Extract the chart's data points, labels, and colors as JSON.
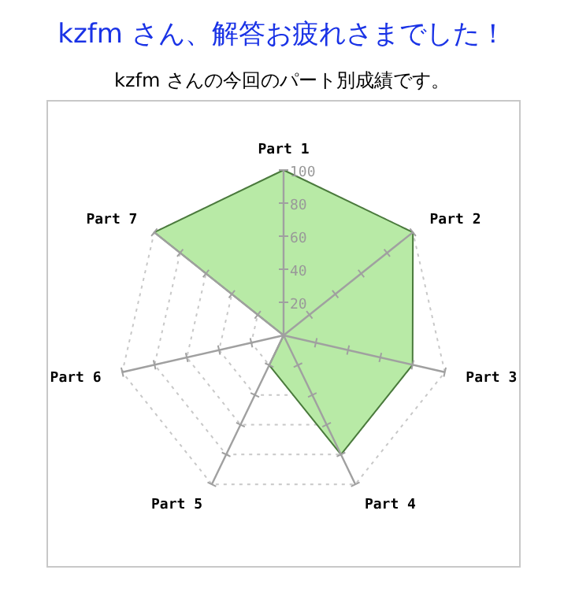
{
  "chart_data": {
    "type": "radar",
    "title": "kzfm さん、解答お疲れさまでした！",
    "subtitle": "kzfm さんの今回のパート別成績です。",
    "categories": [
      "Part 1",
      "Part 2",
      "Part 3",
      "Part 4",
      "Part 5",
      "Part 6",
      "Part 7"
    ],
    "series": [
      {
        "color": "#b8eaa6",
        "values": [
          100,
          100,
          80,
          80,
          20,
          0,
          100
        ]
      }
    ],
    "ylim": [
      0,
      100
    ],
    "yticks": [
      20,
      40,
      60,
      80,
      100
    ],
    "grid": true
  }
}
